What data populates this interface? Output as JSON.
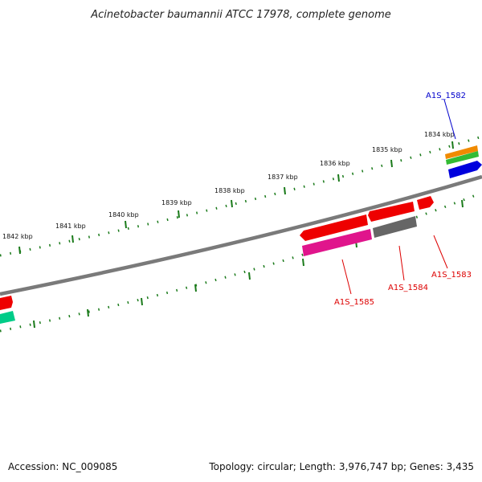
{
  "title": "Acinetobacter baumannii ATCC 17978, complete genome",
  "footer": {
    "accession": "Accession: NC_009085",
    "summary": "Topology: circular; Length: 3,976,747 bp; Genes: 3,435"
  },
  "scale_labels": [
    "1834 kbp",
    "1835 kbp",
    "1836 kbp",
    "1837 kbp",
    "1838 kbp",
    "1839 kbp",
    "1840 kbp",
    "1841 kbp",
    "1842 kbp"
  ],
  "gene_labels": [
    {
      "name": "A1S_1582",
      "color": "#0000cc"
    },
    {
      "name": "A1S_1583",
      "color": "#dd0000"
    },
    {
      "name": "A1S_1584",
      "color": "#dd0000"
    },
    {
      "name": "A1S_1585",
      "color": "#dd0000"
    }
  ],
  "colors": {
    "backbone": "#7a7a7a",
    "ticks": "#1a7a1a",
    "red_gene": "#ee0000",
    "magenta_gene": "#e0158c",
    "gray_gene": "#666666",
    "blue_gene": "#0000dd",
    "orange_gene": "#f08a00",
    "green_gene": "#33bb33",
    "teal_gene": "#00cc88"
  }
}
